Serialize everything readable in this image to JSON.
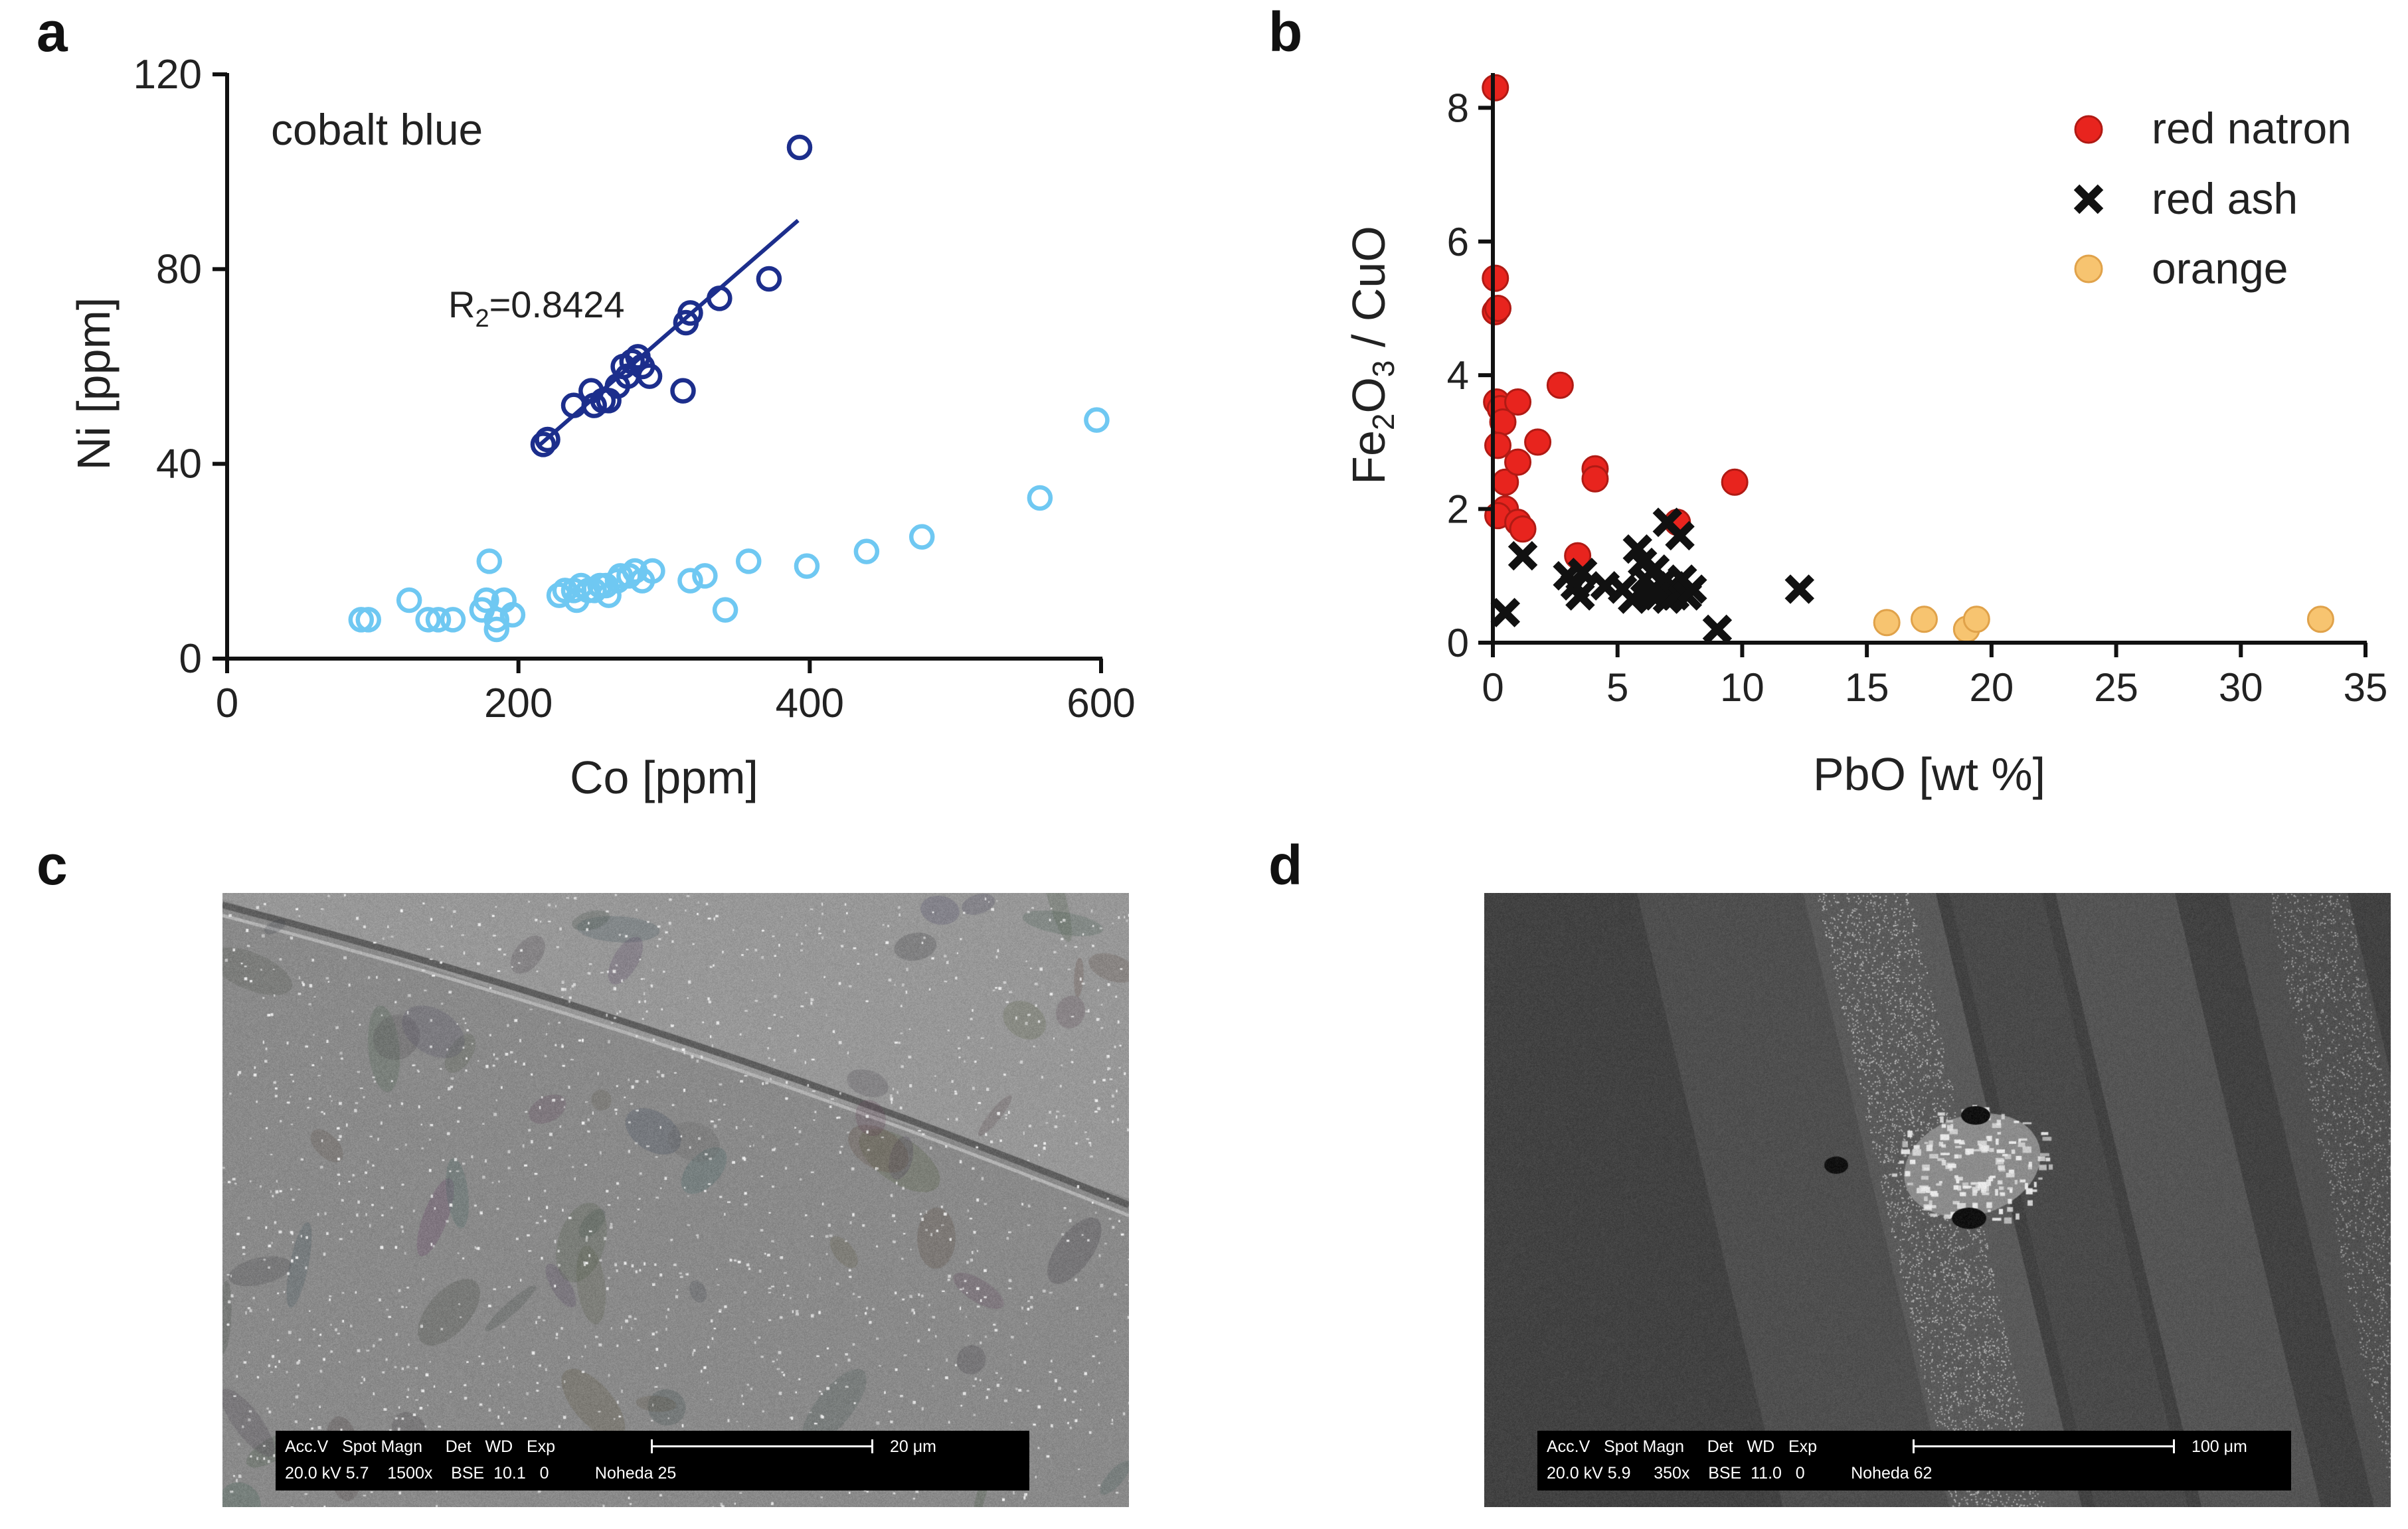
{
  "panels": {
    "a": "a",
    "b": "b",
    "c": "c",
    "d": "d"
  },
  "chart_data": [
    {
      "panel": "a",
      "type": "scatter",
      "xlabel": "Co [ppm]",
      "ylabel": "Ni [ppm]",
      "xlim": [
        0,
        600
      ],
      "ylim": [
        0,
        120
      ],
      "xticks": [
        0,
        200,
        400,
        600
      ],
      "yticks": [
        0,
        40,
        80,
        120
      ],
      "annotations": {
        "group_label": "cobalt blue",
        "r2_prefix": "R",
        "r2_sub": "2",
        "r2_value": "=0.8424"
      },
      "fit_line": {
        "x": [
          215,
          392
        ],
        "y": [
          44,
          90
        ],
        "color": "#1c2e8c"
      },
      "series": [
        {
          "name": "cobalt blue",
          "marker": "open-circle",
          "color": "#1c2e8c",
          "points": [
            [
              217,
              44
            ],
            [
              220,
              45
            ],
            [
              238,
              52
            ],
            [
              250,
              55
            ],
            [
              252,
              52
            ],
            [
              258,
              53
            ],
            [
              262,
              53
            ],
            [
              268,
              56
            ],
            [
              272,
              60
            ],
            [
              275,
              58
            ],
            [
              278,
              61
            ],
            [
              282,
              62
            ],
            [
              285,
              60
            ],
            [
              290,
              58
            ],
            [
              313,
              55
            ],
            [
              315,
              69
            ],
            [
              318,
              71
            ],
            [
              338,
              74
            ],
            [
              372,
              78
            ],
            [
              393,
              105
            ]
          ]
        },
        {
          "name": "light blue",
          "marker": "open-circle",
          "color": "#6fc8f2",
          "points": [
            [
              92,
              8
            ],
            [
              97,
              8
            ],
            [
              125,
              12
            ],
            [
              138,
              8
            ],
            [
              145,
              8
            ],
            [
              155,
              8
            ],
            [
              175,
              10
            ],
            [
              178,
              12
            ],
            [
              180,
              20
            ],
            [
              185,
              8
            ],
            [
              185,
              6
            ],
            [
              190,
              12
            ],
            [
              196,
              9
            ],
            [
              228,
              13
            ],
            [
              232,
              14
            ],
            [
              238,
              14
            ],
            [
              240,
              12
            ],
            [
              243,
              15
            ],
            [
              248,
              14
            ],
            [
              252,
              14
            ],
            [
              256,
              15
            ],
            [
              260,
              15
            ],
            [
              262,
              13
            ],
            [
              268,
              16
            ],
            [
              270,
              17
            ],
            [
              276,
              17
            ],
            [
              280,
              18
            ],
            [
              285,
              16
            ],
            [
              292,
              18
            ],
            [
              318,
              16
            ],
            [
              328,
              17
            ],
            [
              342,
              10
            ],
            [
              358,
              20
            ],
            [
              398,
              19
            ],
            [
              439,
              22
            ],
            [
              477,
              25
            ],
            [
              558,
              33
            ],
            [
              597,
              49
            ]
          ]
        }
      ]
    },
    {
      "panel": "b",
      "type": "scatter",
      "xlabel": "PbO [wt %]",
      "ylabel_parts": [
        "Fe",
        "2",
        "O",
        "3",
        " / CuO"
      ],
      "xlim": [
        0,
        35
      ],
      "ylim": [
        0,
        8.5
      ],
      "xticks": [
        0,
        5,
        10,
        15,
        20,
        25,
        30,
        35
      ],
      "yticks": [
        0,
        2,
        4,
        6,
        8
      ],
      "legend_position": "top-right",
      "series": [
        {
          "name": "red natron",
          "marker": "filled-circle",
          "color": "#e8241e",
          "points": [
            [
              0.1,
              8.3
            ],
            [
              0.1,
              5.45
            ],
            [
              0.1,
              4.95
            ],
            [
              0.2,
              5.0
            ],
            [
              0.15,
              3.6
            ],
            [
              0.3,
              3.5
            ],
            [
              0.4,
              3.3
            ],
            [
              0.2,
              2.95
            ],
            [
              0.5,
              2.4
            ],
            [
              0.5,
              2.0
            ],
            [
              0.2,
              1.9
            ],
            [
              1.0,
              3.6
            ],
            [
              1.0,
              2.7
            ],
            [
              1.0,
              1.8
            ],
            [
              1.2,
              1.7
            ],
            [
              1.8,
              3.0
            ],
            [
              2.7,
              3.85
            ],
            [
              3.4,
              1.3
            ],
            [
              4.1,
              2.6
            ],
            [
              4.1,
              2.45
            ],
            [
              7.4,
              1.8
            ],
            [
              9.7,
              2.4
            ]
          ]
        },
        {
          "name": "red ash",
          "marker": "x",
          "color": "#111111",
          "points": [
            [
              0.5,
              0.45
            ],
            [
              1.2,
              1.3
            ],
            [
              3.0,
              1.0
            ],
            [
              3.3,
              0.85
            ],
            [
              3.5,
              0.7
            ],
            [
              3.6,
              1.05
            ],
            [
              4.5,
              0.85
            ],
            [
              5.2,
              0.8
            ],
            [
              5.6,
              0.65
            ],
            [
              5.8,
              1.4
            ],
            [
              6.0,
              1.2
            ],
            [
              6.1,
              0.95
            ],
            [
              6.3,
              0.75
            ],
            [
              6.5,
              1.1
            ],
            [
              6.6,
              0.7
            ],
            [
              6.8,
              0.9
            ],
            [
              7.0,
              1.8
            ],
            [
              7.0,
              0.65
            ],
            [
              7.2,
              0.85
            ],
            [
              7.3,
              0.7
            ],
            [
              7.5,
              1.6
            ],
            [
              7.6,
              0.95
            ],
            [
              7.8,
              0.7
            ],
            [
              8.0,
              0.8
            ],
            [
              9.0,
              0.2
            ],
            [
              12.3,
              0.8
            ]
          ]
        },
        {
          "name": "orange",
          "marker": "filled-circle",
          "color": "#f7c470",
          "points": [
            [
              15.8,
              0.3
            ],
            [
              17.3,
              0.35
            ],
            [
              19.0,
              0.2
            ],
            [
              19.4,
              0.35
            ],
            [
              33.2,
              0.35
            ]
          ]
        }
      ]
    }
  ],
  "micrographs": {
    "c": {
      "info_top": "Acc.V   Spot Magn     Det   WD   Exp",
      "info_bottom": "20.0 kV 5.7    1500x    BSE  10.1   0          Noheda 25",
      "scale_label": "20 μm"
    },
    "d": {
      "info_top": "Acc.V   Spot Magn     Det   WD   Exp",
      "info_bottom": "20.0 kV 5.9     350x    BSE  11.0   0          Noheda 62",
      "scale_label": "100 μm"
    }
  }
}
